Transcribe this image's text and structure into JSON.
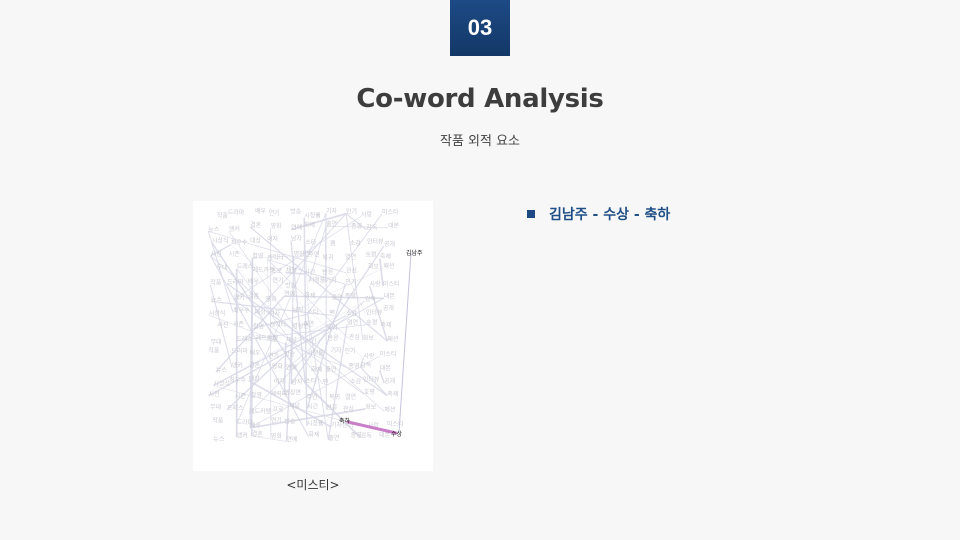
{
  "header": {
    "section_number": "03",
    "title": "Co-word Analysis",
    "subtitle": "작품 외적 요소"
  },
  "figure": {
    "caption": "<미스티>",
    "key_nodes": [
      {
        "id": "kim",
        "label": "김남주"
      },
      {
        "id": "susang",
        "label": "수상"
      },
      {
        "id": "chukha",
        "label": "축하"
      }
    ],
    "background_labels": [
      "작품",
      "드라마",
      "배우",
      "연기",
      "방송",
      "시청률",
      "기자",
      "인기",
      "사랑",
      "미스티",
      "뉴스",
      "앵커",
      "결혼",
      "영화",
      "연예",
      "화제",
      "출연",
      "종영",
      "감독",
      "대본",
      "시상식",
      "최우수",
      "대상",
      "여자",
      "남자",
      "스타",
      "팬",
      "소감",
      "인터뷰",
      "공개",
      "사진",
      "시즌",
      "촬영",
      "캐릭터",
      "명장면",
      "주연",
      "복귀",
      "열연",
      "호평",
      "축제",
      "무대",
      "드레스",
      "레드카펫",
      "프로",
      "채널",
      "시간",
      "반응",
      "관심",
      "화보",
      "패션"
    ],
    "highlight_color": "#c97fc8",
    "edge_color": "#d5d5e6",
    "label_color": "#c8c8d2"
  },
  "bullets": [
    {
      "text": "김남주 - 수상 - 축하",
      "marker_color": "#1d4a85"
    }
  ]
}
